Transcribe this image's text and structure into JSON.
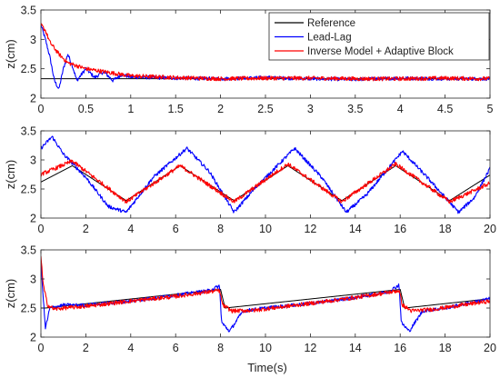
{
  "colors": {
    "reference": "#000000",
    "lead_lag": "#0000ff",
    "adaptive": "#ff0000",
    "axis": "#262626",
    "grid": "#e6e6e6"
  },
  "xlabel": "Time(s)",
  "chart_data": [
    {
      "type": "line",
      "ylabel": "z(cm)",
      "xlim": [
        0,
        5
      ],
      "ylim": [
        2,
        3.5
      ],
      "xticks": [
        0,
        0.5,
        1,
        1.5,
        2,
        2.5,
        3,
        3.5,
        4,
        4.5,
        5
      ],
      "xtick_labels": [
        "0",
        "0.5",
        "1",
        "1.5",
        "2",
        "2.5",
        "3",
        "3.5",
        "4",
        "4.5",
        "5"
      ],
      "yticks": [
        2,
        2.5,
        3,
        3.5
      ],
      "ytick_labels": [
        "2",
        "2.5",
        "3",
        "3.5"
      ],
      "legend": {
        "placement": "top-right",
        "entries": [
          "Reference",
          "Lead-Lag",
          "Inverse Model + Adaptive Block"
        ]
      },
      "series": [
        {
          "name": "Reference",
          "color_key": "reference",
          "x": [
            0,
            5
          ],
          "y": [
            2.33,
            2.33
          ]
        },
        {
          "name": "Lead-Lag",
          "color_key": "lead_lag",
          "x": [
            0,
            0.05,
            0.1,
            0.15,
            0.2,
            0.25,
            0.3,
            0.35,
            0.4,
            0.45,
            0.5,
            0.6,
            0.7,
            0.8,
            0.9,
            1.0,
            1.5,
            2.0,
            2.5,
            3.0,
            3.5,
            4.0,
            4.5,
            5.0
          ],
          "y": [
            3.25,
            3.0,
            2.7,
            2.3,
            2.15,
            2.5,
            2.75,
            2.55,
            2.3,
            2.4,
            2.5,
            2.35,
            2.45,
            2.3,
            2.4,
            2.36,
            2.34,
            2.33,
            2.35,
            2.33,
            2.32,
            2.34,
            2.33,
            2.33
          ]
        },
        {
          "name": "Inverse Model + Adaptive Block",
          "color_key": "adaptive",
          "x": [
            0,
            0.05,
            0.1,
            0.2,
            0.3,
            0.4,
            0.5,
            0.7,
            1.0,
            1.5,
            2.0,
            2.5,
            3.0,
            3.5,
            4.0,
            4.5,
            5.0
          ],
          "y": [
            3.25,
            3.15,
            2.95,
            2.75,
            2.6,
            2.55,
            2.5,
            2.45,
            2.38,
            2.35,
            2.33,
            2.34,
            2.34,
            2.33,
            2.33,
            2.34,
            2.33
          ]
        }
      ]
    },
    {
      "type": "line",
      "ylabel": "z(cm)",
      "xlim": [
        0,
        20
      ],
      "ylim": [
        2,
        3.5
      ],
      "xticks": [
        0,
        2,
        4,
        6,
        8,
        10,
        12,
        14,
        16,
        18,
        20
      ],
      "xtick_labels": [
        "0",
        "2",
        "4",
        "6",
        "8",
        "10",
        "12",
        "14",
        "16",
        "18",
        "20"
      ],
      "yticks": [
        2,
        2.5,
        3,
        3.5
      ],
      "ytick_labels": [
        "2",
        "2.5",
        "3",
        "3.5"
      ],
      "series": [
        {
          "name": "Reference",
          "color_key": "reference",
          "x": [
            0,
            1.4,
            3.8,
            6.2,
            8.6,
            11.0,
            13.4,
            15.8,
            18.2,
            20
          ],
          "y": [
            2.62,
            2.9,
            2.3,
            2.9,
            2.3,
            2.9,
            2.3,
            2.9,
            2.3,
            2.74
          ]
        },
        {
          "name": "Lead-Lag",
          "color_key": "lead_lag",
          "x": [
            0,
            0.5,
            1.0,
            2.0,
            3.0,
            3.8,
            5.0,
            6.5,
            7.5,
            8.6,
            9.5,
            11.3,
            12.5,
            13.6,
            14.5,
            16.1,
            17.2,
            18.6,
            19.3,
            20
          ],
          "y": [
            3.2,
            3.4,
            3.1,
            2.7,
            2.2,
            2.1,
            2.7,
            3.2,
            2.8,
            2.1,
            2.5,
            3.2,
            2.7,
            2.1,
            2.4,
            3.15,
            2.7,
            2.1,
            2.35,
            2.85
          ]
        },
        {
          "name": "Inverse Model + Adaptive Block",
          "color_key": "adaptive",
          "x": [
            0,
            1.4,
            3.8,
            6.2,
            8.6,
            11.0,
            13.4,
            15.8,
            18.2,
            20
          ],
          "y": [
            2.75,
            2.98,
            2.28,
            2.9,
            2.28,
            2.93,
            2.28,
            2.93,
            2.28,
            2.6
          ]
        }
      ]
    },
    {
      "type": "line",
      "ylabel": "z(cm)",
      "xlim": [
        0,
        20
      ],
      "ylim": [
        2,
        3.5
      ],
      "xticks": [
        0,
        2,
        4,
        6,
        8,
        10,
        12,
        14,
        16,
        18,
        20
      ],
      "xtick_labels": [
        "0",
        "2",
        "4",
        "6",
        "8",
        "10",
        "12",
        "14",
        "16",
        "18",
        "20"
      ],
      "yticks": [
        2,
        2.5,
        3,
        3.5
      ],
      "ytick_labels": [
        "2",
        "2.5",
        "3",
        "3.5"
      ],
      "series": [
        {
          "name": "Reference",
          "color_key": "reference",
          "x": [
            0,
            0.2,
            8,
            8.2,
            16,
            16.2,
            20
          ],
          "y": [
            2.5,
            2.5,
            2.82,
            2.5,
            2.82,
            2.5,
            2.66
          ]
        },
        {
          "name": "Lead-Lag",
          "color_key": "lead_lag",
          "x": [
            0,
            0.1,
            0.2,
            0.4,
            1,
            2,
            4,
            6,
            7.5,
            7.95,
            8.05,
            8.4,
            9.0,
            10,
            12,
            14,
            15.5,
            15.95,
            16.05,
            16.4,
            17.0,
            18,
            20
          ],
          "y": [
            3.3,
            2.7,
            2.15,
            2.5,
            2.55,
            2.55,
            2.62,
            2.72,
            2.8,
            2.88,
            2.25,
            2.1,
            2.45,
            2.5,
            2.58,
            2.68,
            2.78,
            2.9,
            2.25,
            2.1,
            2.45,
            2.5,
            2.66
          ]
        },
        {
          "name": "Inverse Model + Adaptive Block",
          "color_key": "adaptive",
          "x": [
            0,
            0.1,
            0.3,
            0.6,
            1,
            2,
            4,
            6,
            7.5,
            7.95,
            8.1,
            8.5,
            9.5,
            12,
            14,
            15.5,
            15.95,
            16.1,
            16.5,
            17.5,
            20
          ],
          "y": [
            3.4,
            2.9,
            2.55,
            2.48,
            2.5,
            2.53,
            2.62,
            2.7,
            2.78,
            2.8,
            2.55,
            2.45,
            2.46,
            2.58,
            2.68,
            2.77,
            2.8,
            2.55,
            2.45,
            2.48,
            2.62
          ]
        }
      ]
    }
  ]
}
